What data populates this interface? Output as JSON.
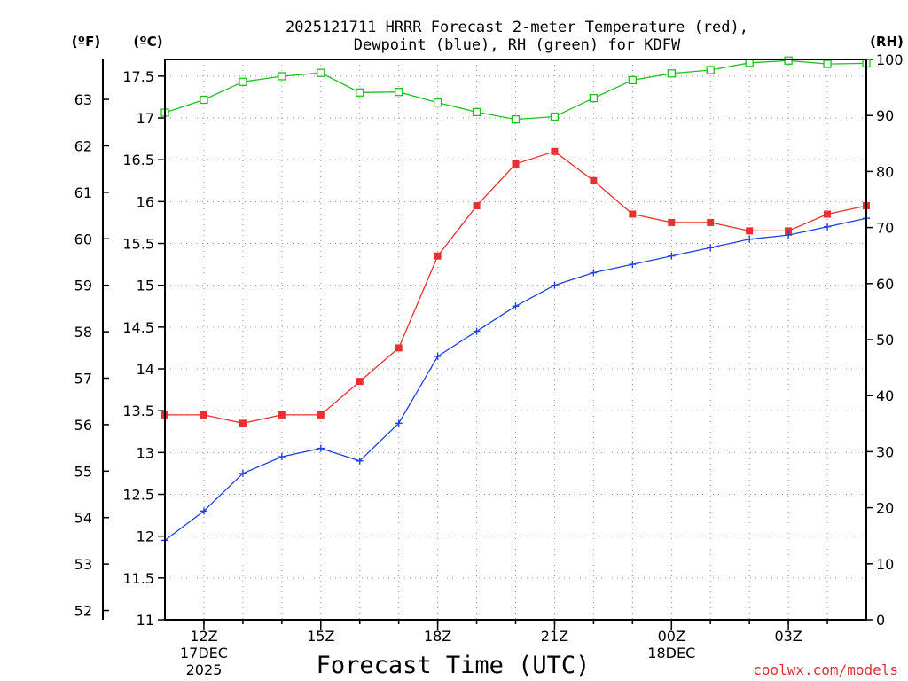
{
  "chart_data": {
    "type": "line",
    "title_line1": "2025121711 HRRR Forecast 2-meter Temperature (red),",
    "title_line2": "Dewpoint (blue), RH (green) for KDFW",
    "xlabel": "Forecast Time (UTC)",
    "credit": "coolwx.com/models",
    "unit_left_f": "(ºF)",
    "unit_left_c": "(ºC)",
    "unit_right": "(RH)",
    "x_hours": [
      11,
      12,
      13,
      14,
      15,
      16,
      17,
      18,
      19,
      20,
      21,
      22,
      23,
      24,
      25,
      26,
      27,
      28,
      29
    ],
    "xlim": [
      11,
      29
    ],
    "x_ticks": [
      {
        "h": 12,
        "label": "12Z",
        "sub1": "17DEC",
        "sub2": "2025"
      },
      {
        "h": 15,
        "label": "15Z",
        "sub1": "",
        "sub2": ""
      },
      {
        "h": 18,
        "label": "18Z",
        "sub1": "",
        "sub2": ""
      },
      {
        "h": 21,
        "label": "21Z",
        "sub1": "",
        "sub2": ""
      },
      {
        "h": 24,
        "label": "00Z",
        "sub1": "18DEC",
        "sub2": ""
      },
      {
        "h": 27,
        "label": "03Z",
        "sub1": "",
        "sub2": ""
      }
    ],
    "c_ylim": [
      11,
      17.7
    ],
    "c_ticks": [
      "11",
      "11.5",
      "12",
      "12.5",
      "13",
      "13.5",
      "14",
      "14.5",
      "15",
      "15.5",
      "16",
      "16.5",
      "17",
      "17.5"
    ],
    "f_ticks": [
      "52",
      "53",
      "54",
      "55",
      "56",
      "57",
      "58",
      "59",
      "60",
      "61",
      "62",
      "63"
    ],
    "rh_ylim": [
      0,
      100
    ],
    "rh_ticks": [
      "0",
      "10",
      "20",
      "30",
      "40",
      "50",
      "60",
      "70",
      "80",
      "90",
      "100"
    ],
    "series": [
      {
        "name": "Temperature",
        "color": "#e83030",
        "marker": "square-filled",
        "values": [
          13.45,
          13.45,
          13.35,
          13.45,
          13.45,
          13.85,
          14.25,
          15.35,
          15.95,
          16.45,
          16.6,
          16.25,
          15.85,
          15.75,
          15.75,
          15.65,
          15.65,
          15.85,
          15.95
        ]
      },
      {
        "name": "Dewpoint",
        "color": "#2040e0",
        "marker": "plus",
        "values": [
          11.95,
          12.3,
          12.75,
          12.95,
          13.05,
          12.9,
          13.35,
          14.15,
          14.45,
          14.75,
          15.0,
          15.15,
          15.25,
          15.35,
          15.45,
          15.55,
          15.6,
          15.7,
          15.8
        ]
      },
      {
        "name": "RH",
        "color": "#20c020",
        "marker": "square-open",
        "values": [
          90.5,
          92.8,
          96.0,
          97.0,
          97.6,
          94.1,
          94.2,
          92.3,
          90.6,
          89.3,
          89.8,
          93.1,
          96.3,
          97.5,
          98.1,
          99.4,
          99.8,
          99.2,
          99.3
        ]
      }
    ]
  }
}
